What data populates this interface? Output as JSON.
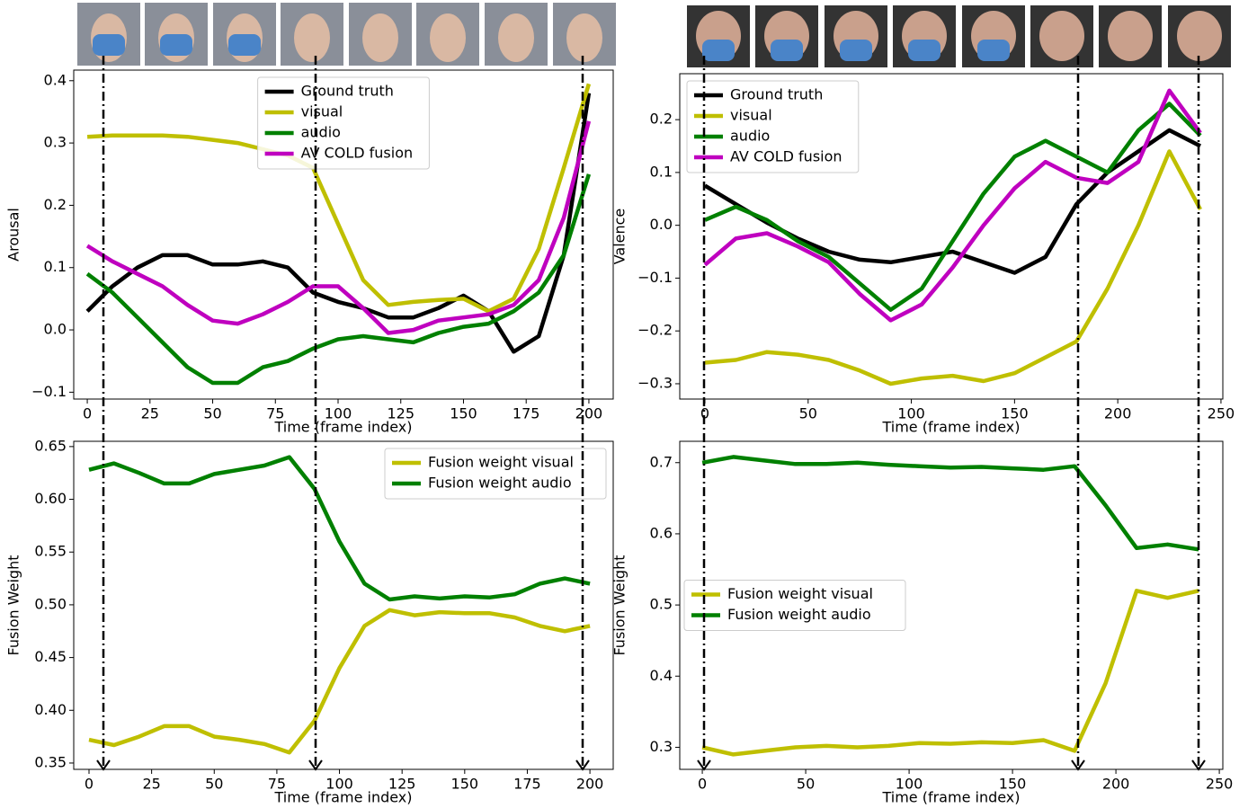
{
  "chart_data": [
    {
      "type": "line",
      "x_label": "Time (frame index)",
      "y_label": "Arousal",
      "x": [
        0,
        10,
        20,
        30,
        40,
        50,
        60,
        70,
        80,
        90,
        100,
        110,
        120,
        130,
        140,
        150,
        160,
        170,
        180,
        190,
        200
      ],
      "series": [
        {
          "name": "Ground truth",
          "color": "#000000",
          "values": [
            0.03,
            0.07,
            0.1,
            0.12,
            0.12,
            0.105,
            0.105,
            0.11,
            0.1,
            0.06,
            0.045,
            0.035,
            0.02,
            0.02,
            0.035,
            0.055,
            0.03,
            -0.035,
            -0.01,
            0.12,
            0.38
          ]
        },
        {
          "name": "visual",
          "color": "#bfbf00",
          "values": [
            0.31,
            0.312,
            0.312,
            0.312,
            0.31,
            0.305,
            0.3,
            0.29,
            0.28,
            0.26,
            0.17,
            0.08,
            0.04,
            0.045,
            0.048,
            0.05,
            0.03,
            0.05,
            0.13,
            0.26,
            0.395
          ]
        },
        {
          "name": "audio",
          "color": "#008000",
          "values": [
            0.09,
            0.06,
            0.02,
            -0.02,
            -0.06,
            -0.085,
            -0.085,
            -0.06,
            -0.05,
            -0.03,
            -0.015,
            -0.01,
            -0.015,
            -0.02,
            -0.005,
            0.005,
            0.01,
            0.03,
            0.06,
            0.12,
            0.25
          ]
        },
        {
          "name": "AV COLD fusion",
          "color": "#bf00bf",
          "values": [
            0.135,
            0.11,
            0.09,
            0.07,
            0.04,
            0.015,
            0.01,
            0.025,
            0.045,
            0.07,
            0.07,
            0.035,
            -0.005,
            0.0,
            0.015,
            0.02,
            0.025,
            0.04,
            0.08,
            0.18,
            0.335
          ]
        }
      ],
      "xlim": [
        -5.4,
        209.7
      ],
      "ylim": [
        -0.111,
        0.417
      ],
      "xticks": [
        0,
        25,
        50,
        75,
        100,
        125,
        150,
        175,
        200
      ],
      "yticks": [
        {
          "value": -0.1,
          "label": "−0.1"
        },
        {
          "value": 0,
          "label": "0.0"
        },
        0.1,
        0.2,
        0.3,
        0.4
      ],
      "legend": "upper center"
    },
    {
      "type": "line",
      "x_label": "Time (frame index)",
      "y_label": "Fusion Weight",
      "x": [
        0,
        10,
        20,
        30,
        40,
        50,
        60,
        70,
        80,
        90,
        100,
        110,
        120,
        130,
        140,
        150,
        160,
        170,
        180,
        190,
        200
      ],
      "series": [
        {
          "name": "Fusion weight visual",
          "color": "#bfbf00",
          "values": [
            0.372,
            0.367,
            0.375,
            0.385,
            0.385,
            0.375,
            0.372,
            0.368,
            0.36,
            0.39,
            0.44,
            0.48,
            0.495,
            0.49,
            0.493,
            0.492,
            0.492,
            0.488,
            0.48,
            0.475,
            0.48
          ]
        },
        {
          "name": "Fusion weight audio",
          "color": "#008000",
          "values": [
            0.628,
            0.634,
            0.625,
            0.615,
            0.615,
            0.624,
            0.628,
            0.632,
            0.64,
            0.61,
            0.56,
            0.52,
            0.505,
            0.508,
            0.506,
            0.508,
            0.507,
            0.51,
            0.52,
            0.525,
            0.52
          ]
        }
      ],
      "xlim": [
        -6.1,
        209.3
      ],
      "ylim": [
        0.344,
        0.655
      ],
      "xticks": [
        0,
        25,
        50,
        75,
        100,
        125,
        150,
        175,
        200
      ],
      "yticks": [
        0.35,
        {
          "value": 0.4,
          "label": "0.40"
        },
        0.45,
        {
          "value": 0.5,
          "label": "0.50"
        },
        0.55,
        {
          "value": 0.6,
          "label": "0.60"
        },
        0.65
      ],
      "legend": "upper right"
    },
    {
      "type": "line",
      "x_label": "Time (frame index)",
      "y_label": "Valence",
      "x": [
        0,
        15,
        30,
        45,
        60,
        75,
        90,
        105,
        120,
        135,
        150,
        165,
        180,
        195,
        210,
        225,
        240
      ],
      "series": [
        {
          "name": "Ground truth",
          "color": "#000000",
          "values": [
            0.075,
            0.04,
            0.005,
            -0.025,
            -0.05,
            -0.065,
            -0.07,
            -0.06,
            -0.05,
            -0.07,
            -0.09,
            -0.06,
            0.04,
            0.1,
            0.14,
            0.18,
            0.15
          ]
        },
        {
          "name": "visual",
          "color": "#bfbf00",
          "values": [
            -0.26,
            -0.255,
            -0.24,
            -0.245,
            -0.255,
            -0.275,
            -0.3,
            -0.29,
            -0.285,
            -0.295,
            -0.28,
            -0.25,
            -0.22,
            -0.12,
            0.0,
            0.14,
            0.03
          ]
        },
        {
          "name": "audio",
          "color": "#008000",
          "values": [
            0.01,
            0.035,
            0.01,
            -0.03,
            -0.06,
            -0.11,
            -0.16,
            -0.12,
            -0.03,
            0.06,
            0.13,
            0.16,
            0.13,
            0.1,
            0.18,
            0.23,
            0.17
          ]
        },
        {
          "name": "AV COLD fusion",
          "color": "#bf00bf",
          "values": [
            -0.075,
            -0.025,
            -0.015,
            -0.04,
            -0.07,
            -0.13,
            -0.18,
            -0.15,
            -0.08,
            0.0,
            0.07,
            0.12,
            0.09,
            0.08,
            0.12,
            0.255,
            0.175
          ]
        }
      ],
      "xlim": [
        -12.2,
        250.9
      ],
      "ylim": [
        -0.329,
        0.287
      ],
      "xticks": [
        0,
        50,
        100,
        150,
        200,
        250
      ],
      "yticks": [
        {
          "value": -0.3,
          "label": "−0.3"
        },
        {
          "value": -0.2,
          "label": "−0.2"
        },
        {
          "value": -0.1,
          "label": "−0.1"
        },
        {
          "value": 0,
          "label": "0.0"
        },
        0.1,
        0.2
      ],
      "legend": "upper left"
    },
    {
      "type": "line",
      "x_label": "Time (frame index)",
      "y_label": "Fusion Weight",
      "x": [
        0,
        15,
        30,
        45,
        60,
        75,
        90,
        105,
        120,
        135,
        150,
        165,
        180,
        195,
        210,
        225,
        240
      ],
      "series": [
        {
          "name": "Fusion weight visual",
          "color": "#bfbf00",
          "values": [
            0.3,
            0.29,
            0.295,
            0.3,
            0.302,
            0.3,
            0.302,
            0.306,
            0.305,
            0.307,
            0.306,
            0.31,
            0.295,
            0.39,
            0.52,
            0.51,
            0.52
          ]
        },
        {
          "name": "Fusion weight audio",
          "color": "#008000",
          "values": [
            0.7,
            0.708,
            0.703,
            0.698,
            0.698,
            0.7,
            0.697,
            0.695,
            0.693,
            0.694,
            0.692,
            0.69,
            0.695,
            0.64,
            0.58,
            0.585,
            0.578
          ]
        }
      ],
      "xlim": [
        -10.9,
        251.7
      ],
      "ylim": [
        0.269,
        0.73
      ],
      "xticks": [
        0,
        50,
        100,
        150,
        200,
        250
      ],
      "yticks": [
        0.3,
        0.4,
        0.5,
        0.6,
        0.7
      ],
      "legend": "center left"
    }
  ]
}
